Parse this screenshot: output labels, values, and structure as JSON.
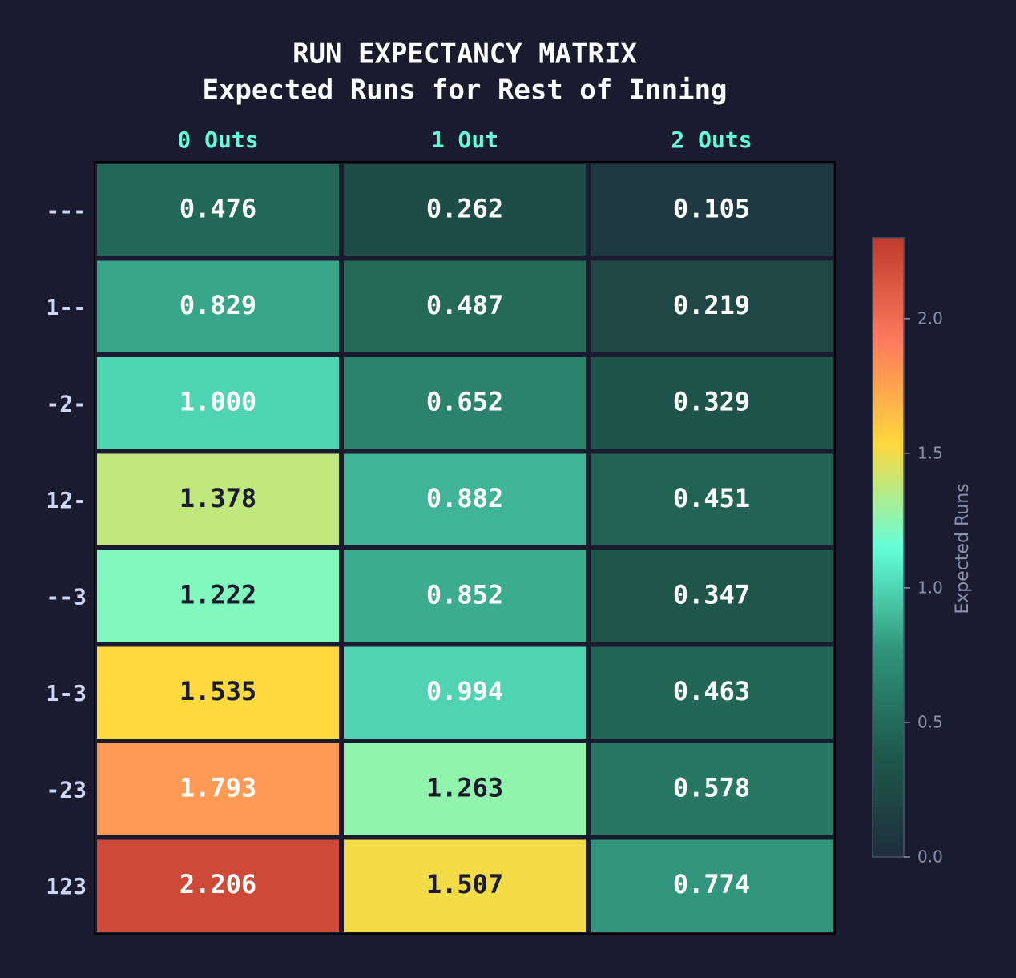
{
  "chart_data": {
    "type": "heatmap",
    "title": "RUN EXPECTANCY MATRIX",
    "subtitle": "Expected Runs for Rest of Inning",
    "x_categories": [
      "0 Outs",
      "1 Out",
      "2 Outs"
    ],
    "y_categories": [
      "---",
      "1--",
      "-2-",
      "12-",
      "--3",
      "1-3",
      "-23",
      "123"
    ],
    "values": [
      [
        0.476,
        0.262,
        0.105
      ],
      [
        0.829,
        0.487,
        0.219
      ],
      [
        1.0,
        0.652,
        0.329
      ],
      [
        1.378,
        0.882,
        0.451
      ],
      [
        1.222,
        0.852,
        0.347
      ],
      [
        1.535,
        0.994,
        0.463
      ],
      [
        1.793,
        1.263,
        0.578
      ],
      [
        2.206,
        1.507,
        0.774
      ]
    ],
    "value_labels": [
      [
        "0.476",
        "0.262",
        "0.105"
      ],
      [
        "0.829",
        "0.487",
        "0.219"
      ],
      [
        "1.000",
        "0.652",
        "0.329"
      ],
      [
        "1.378",
        "0.882",
        "0.451"
      ],
      [
        "1.222",
        "0.852",
        "0.347"
      ],
      [
        "1.535",
        "0.994",
        "0.463"
      ],
      [
        "1.793",
        "1.263",
        "0.578"
      ],
      [
        "2.206",
        "1.507",
        "0.774"
      ]
    ],
    "colormap": [
      "#1e2d3d",
      "#1e5a4b",
      "#309479",
      "#64ffda",
      "#ffd93d",
      "#ff7a5e",
      "#c0392b"
    ],
    "colorbar_label": "Expected Runs",
    "clim": [
      0,
      2.3
    ],
    "cticks": [
      {
        "value": 0,
        "label": "0.0"
      },
      {
        "value": 0.5,
        "label": "0.5"
      },
      {
        "value": 1,
        "label": "1.0"
      },
      {
        "value": 1.5,
        "label": "1.5"
      },
      {
        "value": 2,
        "label": "2.0"
      }
    ]
  }
}
